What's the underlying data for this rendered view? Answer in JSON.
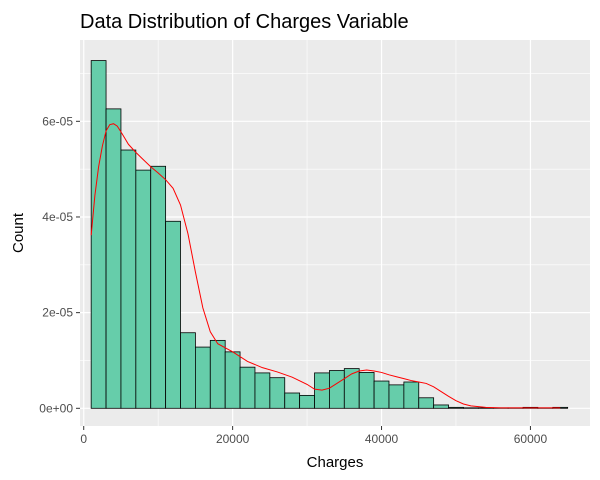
{
  "chart_data": {
    "type": "bar",
    "title": "Data Distribution of Charges Variable",
    "xlabel": "Charges",
    "ylabel": "Count",
    "xlim": [
      -500,
      68000
    ],
    "ylim": [
      -3.7e-06,
      7.7e-05
    ],
    "x_ticks": [
      {
        "value": 0,
        "label": "0"
      },
      {
        "value": 20000,
        "label": "20000"
      },
      {
        "value": 40000,
        "label": "40000"
      },
      {
        "value": 60000,
        "label": "60000"
      }
    ],
    "y_ticks": [
      {
        "value": 0,
        "label": "0e+00"
      },
      {
        "value": 2e-05,
        "label": "2e-05"
      },
      {
        "value": 4e-05,
        "label": "4e-05"
      },
      {
        "value": 6e-05,
        "label": "6e-05"
      }
    ],
    "bar_color": "#66CDAA",
    "bar_edge_color": "#000000",
    "density_color": "#FF0000",
    "panel_color": "#EBEBEB",
    "grid_color": "#FFFFFF",
    "bins": {
      "start": 1000,
      "width": 2000,
      "heights": [
        7.27e-05,
        6.26e-05,
        5.4e-05,
        4.98e-05,
        5.06e-05,
        3.91e-05,
        1.58e-05,
        1.28e-05,
        1.42e-05,
        1.18e-05,
        8.6e-06,
        7.4e-06,
        6.4e-06,
        3.2e-06,
        2.7e-06,
        7.4e-06,
        7.9e-06,
        8.3e-06,
        7.5e-06,
        5.7e-06,
        4.9e-06,
        5.5e-06,
        2.2e-06,
        7e-07,
        2e-07,
        1e-07,
        1e-07,
        1e-07,
        1e-07,
        2e-07,
        1e-07,
        2e-07
      ]
    },
    "density": {
      "x": [
        1000,
        1500,
        2000,
        2500,
        3000,
        3500,
        4000,
        4500,
        5000,
        5500,
        6000,
        7000,
        8000,
        9000,
        10000,
        11000,
        12000,
        13000,
        14000,
        15000,
        16000,
        17000,
        18000,
        20000,
        22000,
        24000,
        26000,
        28000,
        30000,
        31000,
        32000,
        33000,
        34000,
        35000,
        36000,
        37000,
        38000,
        39000,
        40000,
        41000,
        42000,
        43000,
        44000,
        45000,
        46000,
        47000,
        48000,
        49000,
        50000,
        51000,
        52000,
        54000,
        56000,
        58000,
        60000,
        62000,
        64000
      ],
      "y": [
        3.62e-05,
        4.45e-05,
        5.05e-05,
        5.48e-05,
        5.8e-05,
        5.93e-05,
        5.95e-05,
        5.9e-05,
        5.78e-05,
        5.65e-05,
        5.52e-05,
        5.35e-05,
        5.2e-05,
        5.05e-05,
        4.92e-05,
        4.78e-05,
        4.6e-05,
        4.25e-05,
        3.65e-05,
        2.85e-05,
        2.1e-05,
        1.6e-05,
        1.35e-05,
        1.18e-05,
        9.8e-06,
        8.5e-06,
        7.6e-06,
        6.5e-06,
        5e-06,
        4e-06,
        3.8e-06,
        4.2e-06,
        5.2e-06,
        6.2e-06,
        7.2e-06,
        7.8e-06,
        8e-06,
        7.8e-06,
        7.5e-06,
        7e-06,
        6.6e-06,
        6.2e-06,
        5.8e-06,
        5.5e-06,
        5.2e-06,
        4.5e-06,
        3.5e-06,
        2.5e-06,
        1.6e-06,
        9e-07,
        5e-07,
        2e-07,
        1e-07,
        1e-07,
        1e-07,
        1e-07,
        1e-07
      ]
    }
  }
}
